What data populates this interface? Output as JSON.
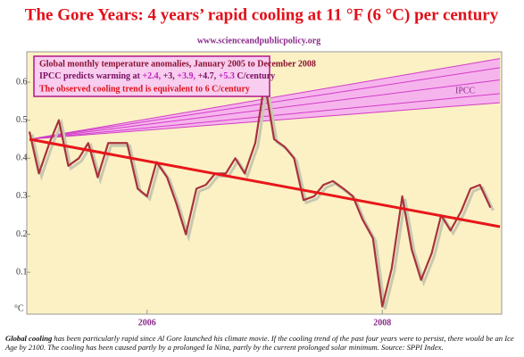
{
  "chart_data": {
    "type": "line",
    "title": "The Gore Years: 4 years’ rapid cooling at 11 °F (6 °C) per century",
    "subtitle": "www.scienceandpublicpolicy.org",
    "xlim": [
      2005,
      2009
    ],
    "xticks": [
      2006,
      2008
    ],
    "ylim": [
      -0.01,
      0.68
    ],
    "yticks": [
      0.1,
      0.2,
      0.3,
      0.4,
      0.5,
      0.6
    ],
    "y_unit": "°C",
    "x": [
      2005.0,
      2005.08,
      2005.17,
      2005.25,
      2005.33,
      2005.42,
      2005.5,
      2005.58,
      2005.67,
      2005.75,
      2005.83,
      2005.92,
      2006.0,
      2006.08,
      2006.17,
      2006.25,
      2006.33,
      2006.42,
      2006.5,
      2006.58,
      2006.67,
      2006.75,
      2006.83,
      2006.92,
      2007.0,
      2007.08,
      2007.17,
      2007.25,
      2007.33,
      2007.42,
      2007.5,
      2007.58,
      2007.67,
      2007.75,
      2007.83,
      2007.92,
      2008.0,
      2008.08,
      2008.17,
      2008.25,
      2008.33,
      2008.42,
      2008.5,
      2008.58,
      2008.67,
      2008.75,
      2008.83,
      2008.92
    ],
    "series": [
      {
        "name": "Global monthly temperature anomalies, January 2005 to December 2008",
        "color": "#a8323c",
        "values": [
          0.47,
          0.36,
          0.44,
          0.5,
          0.38,
          0.4,
          0.44,
          0.35,
          0.44,
          0.44,
          0.44,
          0.32,
          0.3,
          0.39,
          0.35,
          0.28,
          0.2,
          0.32,
          0.33,
          0.36,
          0.36,
          0.4,
          0.36,
          0.44,
          0.6,
          0.45,
          0.43,
          0.4,
          0.29,
          0.3,
          0.33,
          0.34,
          0.32,
          0.3,
          0.24,
          0.19,
          0.01,
          0.11,
          0.3,
          0.16,
          0.08,
          0.15,
          0.25,
          0.21,
          0.26,
          0.32,
          0.33,
          0.27
        ]
      }
    ],
    "trend": {
      "name": "The observed cooling trend is equivalent to 6 C/century",
      "color": "#e8161a",
      "x": [
        2005,
        2009
      ],
      "values": [
        0.45,
        0.22
      ]
    },
    "ipcc": {
      "label": "IPCC",
      "prefix": "IPCC predicts warming at",
      "suffix": "C/century",
      "color": "#d23cc8",
      "band_color": "#f6b4ec",
      "x": [
        2005,
        2009
      ],
      "rate_labels": [
        "+2.4,",
        "+3,",
        "+3.9,",
        "+4.7,",
        "+5.3"
      ],
      "rate_colors": [
        "#c020c0",
        "#7a1060",
        "#c020c0",
        "#7a1060",
        "#c020c0"
      ],
      "lines": [
        {
          "values": [
            0.45,
            0.546
          ]
        },
        {
          "values": [
            0.45,
            0.57
          ]
        },
        {
          "values": [
            0.45,
            0.606
          ]
        },
        {
          "values": [
            0.45,
            0.638
          ]
        },
        {
          "values": [
            0.45,
            0.662
          ]
        }
      ]
    },
    "caption": {
      "lead": "Global cooling",
      "text": " has been particularly rapid since Al Gore launched his climate movie. If the cooling trend of the past four years were to persist, there would be an Ice Age by 2100. The cooling has been caused partly by a prolonged la Nina, partly by the current prolonged solar minimum. Source: SPPI Index."
    }
  }
}
